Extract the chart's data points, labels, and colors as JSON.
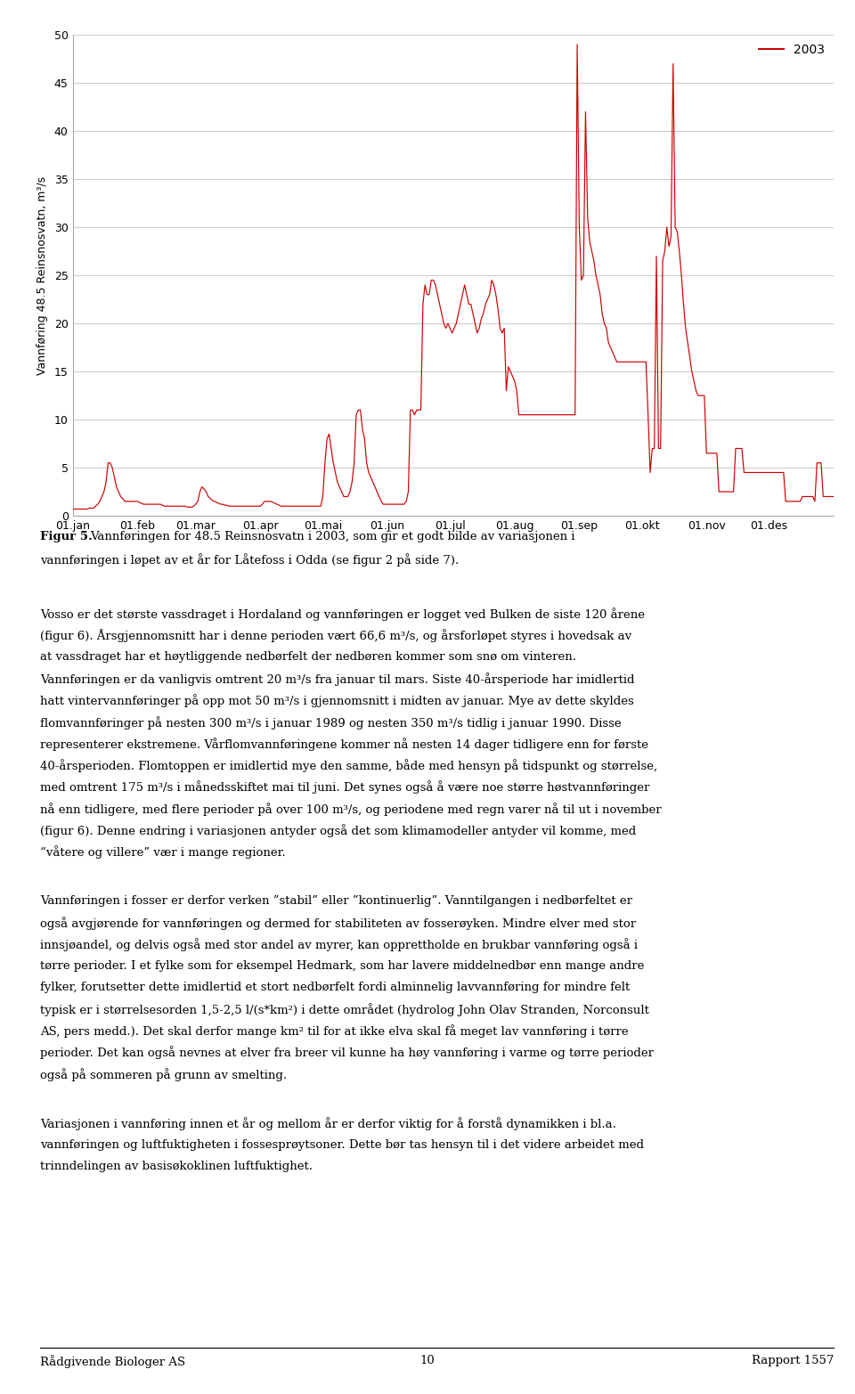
{
  "ylabel": "Vannføring 48.5 Reinsnosvatn, m³/s",
  "ylim": [
    0,
    50
  ],
  "yticks": [
    0,
    5,
    10,
    15,
    20,
    25,
    30,
    35,
    40,
    45,
    50
  ],
  "line_color": "#cc0000",
  "legend_label": "2003",
  "x_tick_labels": [
    "01.jan",
    "01.feb",
    "01.mar",
    "01.apr",
    "01.mai",
    "01.jun",
    "01.jul",
    "01.aug",
    "01.sep",
    "01.okt",
    "01.nov",
    "01.des"
  ],
  "background_color": "#ffffff",
  "grid_color": "#cccccc",
  "footer_left": "Rådgivende Biologer AS",
  "footer_center": "10",
  "footer_right": "Rapport 1557",
  "flow_data": [
    0.7,
    0.7,
    0.7,
    0.7,
    0.7,
    0.7,
    0.7,
    0.7,
    0.8,
    0.8,
    0.8,
    1.0,
    1.2,
    1.5,
    2.0,
    2.5,
    3.5,
    5.5,
    5.5,
    5.0,
    4.0,
    3.0,
    2.5,
    2.0,
    1.8,
    1.5,
    1.5,
    1.5,
    1.5,
    1.5,
    1.5,
    1.5,
    1.4,
    1.3,
    1.2,
    1.2,
    1.2,
    1.2,
    1.2,
    1.2,
    1.2,
    1.2,
    1.2,
    1.1,
    1.0,
    1.0,
    1.0,
    1.0,
    1.0,
    1.0,
    1.0,
    1.0,
    1.0,
    1.0,
    1.0,
    0.9,
    0.9,
    0.9,
    1.0,
    1.2,
    1.5,
    2.5,
    3.0,
    2.8,
    2.5,
    2.0,
    1.8,
    1.6,
    1.5,
    1.4,
    1.3,
    1.2,
    1.2,
    1.1,
    1.1,
    1.0,
    1.0,
    1.0,
    1.0,
    1.0,
    1.0,
    1.0,
    1.0,
    1.0,
    1.0,
    1.0,
    1.0,
    1.0,
    1.0,
    1.0,
    1.0,
    1.2,
    1.5,
    1.5,
    1.5,
    1.5,
    1.4,
    1.3,
    1.2,
    1.1,
    1.0,
    1.0,
    1.0,
    1.0,
    1.0,
    1.0,
    1.0,
    1.0,
    1.0,
    1.0,
    1.0,
    1.0,
    1.0,
    1.0,
    1.0,
    1.0,
    1.0,
    1.0,
    1.0,
    1.0,
    2.0,
    5.5,
    8.0,
    8.5,
    7.0,
    5.5,
    4.5,
    3.5,
    3.0,
    2.5,
    2.0,
    2.0,
    2.0,
    2.5,
    3.5,
    5.5,
    10.5,
    11.0,
    11.0,
    9.0,
    8.0,
    5.5,
    4.5,
    4.0,
    3.5,
    3.0,
    2.5,
    2.0,
    1.5,
    1.2,
    1.2,
    1.2,
    1.2,
    1.2,
    1.2,
    1.2,
    1.2,
    1.2,
    1.2,
    1.2,
    1.5,
    2.5,
    11.0,
    11.0,
    10.5,
    11.0,
    11.0,
    11.0,
    22.0,
    24.0,
    23.0,
    23.0,
    24.5,
    24.5,
    24.0,
    23.0,
    22.0,
    21.0,
    20.0,
    19.5,
    20.0,
    19.5,
    19.0,
    19.5,
    20.0,
    21.0,
    22.0,
    23.0,
    24.0,
    23.0,
    22.0,
    22.0,
    21.0,
    20.0,
    19.0,
    19.5,
    20.5,
    21.0,
    22.0,
    22.5,
    23.0,
    24.5,
    24.0,
    23.0,
    21.5,
    19.5,
    19.0,
    19.5,
    13.0,
    15.5,
    15.0,
    14.5,
    14.0,
    13.0,
    10.5,
    10.5,
    10.5,
    10.5,
    10.5,
    10.5,
    10.5,
    10.5,
    10.5,
    10.5,
    10.5,
    10.5,
    10.5,
    10.5,
    10.5,
    10.5,
    10.5,
    10.5,
    10.5,
    10.5,
    10.5,
    10.5,
    10.5,
    10.5,
    10.5,
    10.5,
    10.5,
    10.5,
    49.0,
    30.0,
    24.5,
    25.0,
    42.0,
    31.0,
    28.5,
    27.5,
    26.5,
    25.0,
    24.0,
    23.0,
    21.0,
    20.0,
    19.5,
    18.0,
    17.5,
    17.0,
    16.5,
    16.0,
    16.0,
    16.0,
    16.0,
    16.0,
    16.0,
    16.0,
    16.0,
    16.0,
    16.0,
    16.0,
    16.0,
    16.0,
    16.0,
    16.0,
    10.5,
    4.5,
    7.0,
    7.0,
    27.0,
    7.0,
    7.0,
    26.5,
    27.5,
    30.0,
    28.0,
    29.0,
    47.0,
    30.0,
    29.5,
    27.5,
    25.0,
    22.0,
    19.5,
    18.0,
    16.5,
    15.0,
    14.0,
    13.0,
    12.5,
    12.5,
    12.5,
    12.5,
    6.5,
    6.5,
    6.5,
    6.5,
    6.5,
    6.5,
    2.5,
    2.5,
    2.5,
    2.5,
    2.5,
    2.5,
    2.5,
    2.5,
    7.0,
    7.0,
    7.0,
    7.0,
    4.5,
    4.5,
    4.5,
    4.5,
    4.5,
    4.5,
    4.5,
    4.5,
    4.5,
    4.5,
    4.5,
    4.5,
    4.5,
    4.5,
    4.5,
    4.5,
    4.5,
    4.5,
    4.5,
    4.5,
    1.5,
    1.5,
    1.5,
    1.5,
    1.5,
    1.5,
    1.5,
    1.5,
    2.0,
    2.0,
    2.0,
    2.0,
    2.0,
    2.0,
    1.5,
    5.5,
    5.5,
    5.5,
    2.0,
    2.0,
    2.0,
    2.0,
    2.0,
    2.0
  ]
}
